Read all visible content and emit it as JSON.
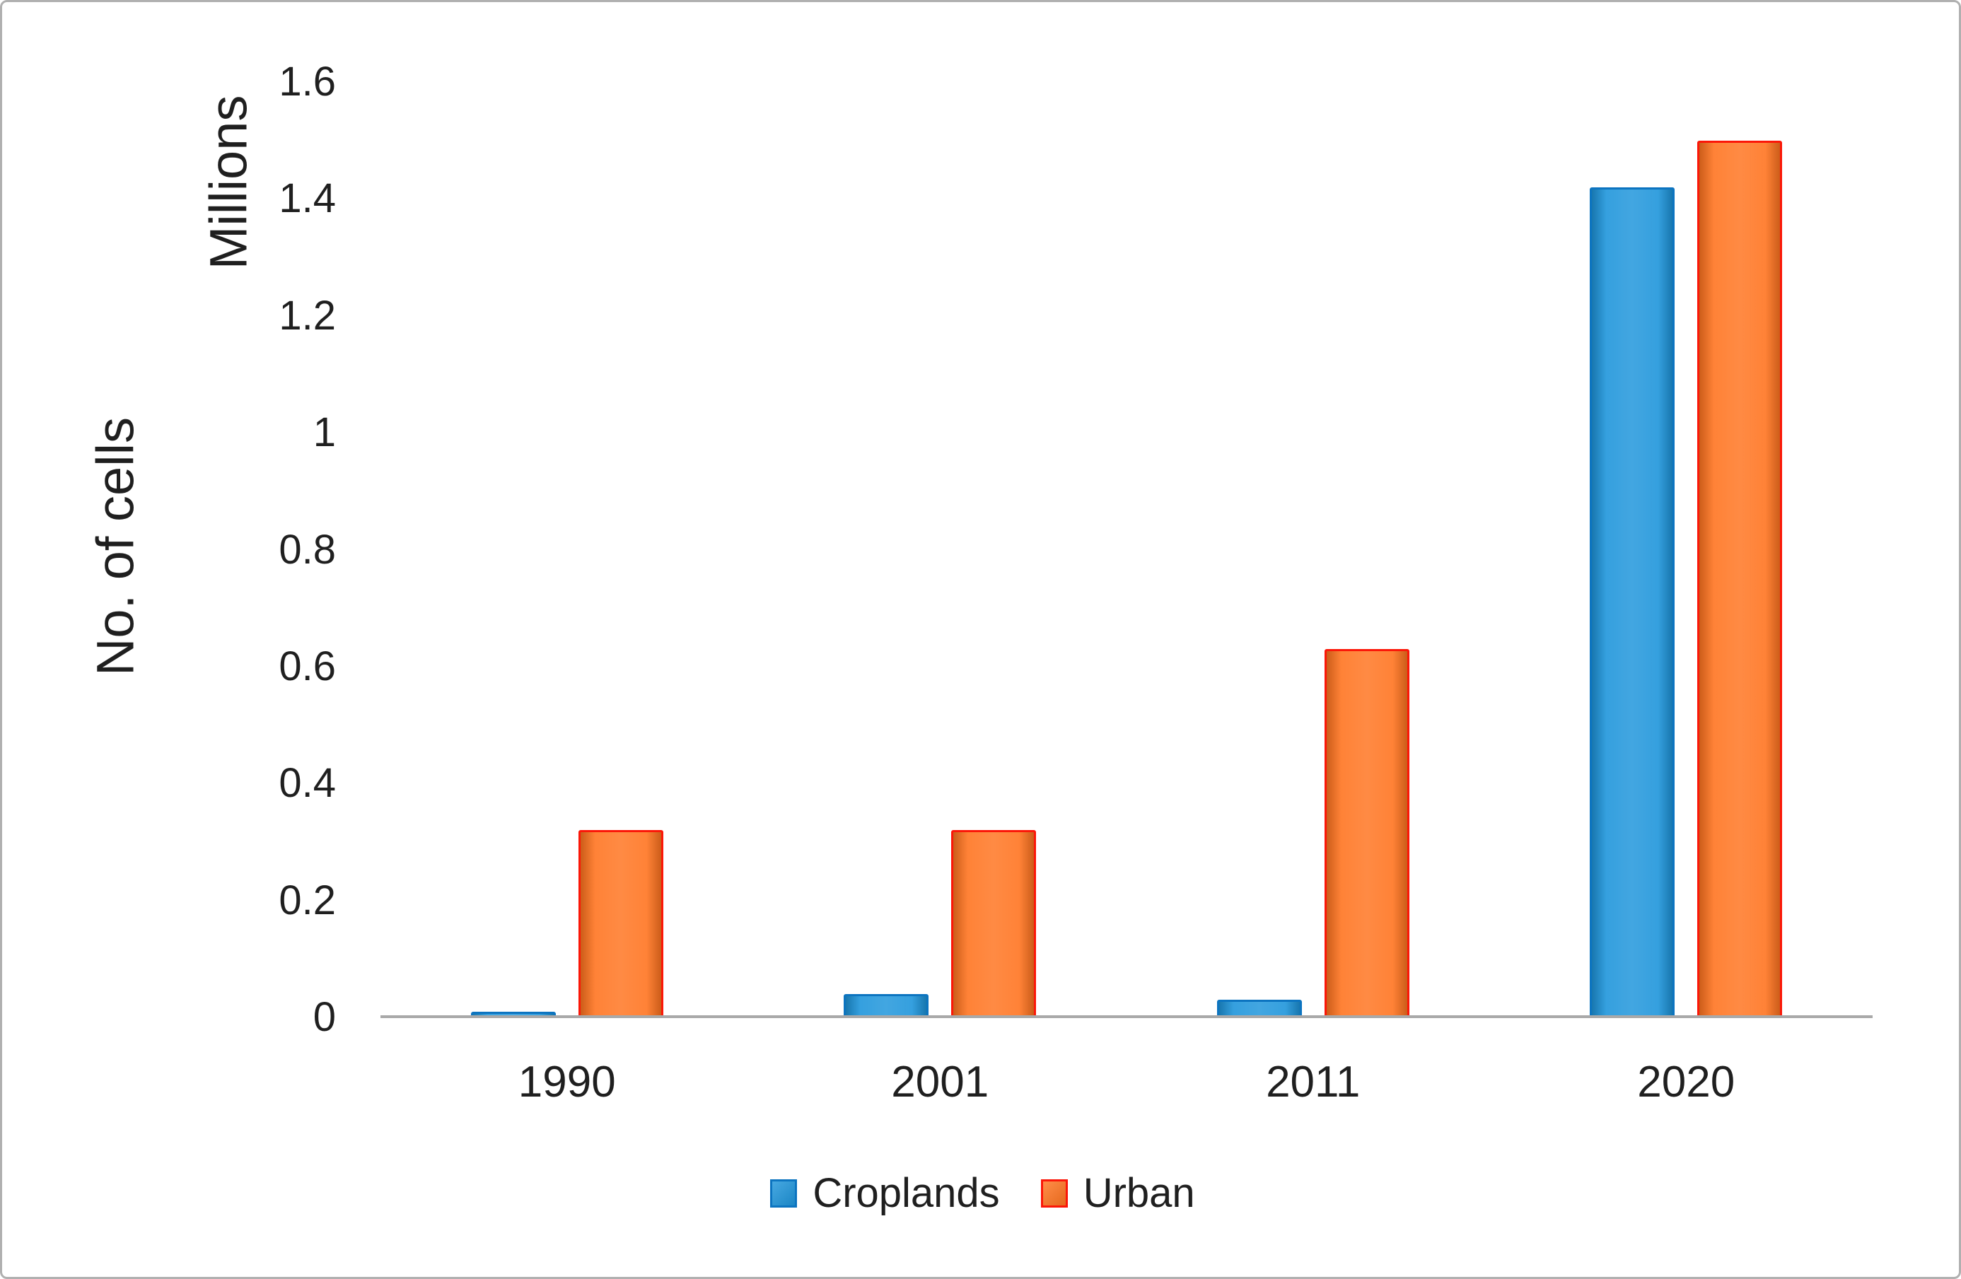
{
  "figure": {
    "background": "#ffffff",
    "frame_border_color": "#b0b0b0",
    "text_color": "#1f1f1f"
  },
  "chart_data": {
    "type": "bar",
    "title": "",
    "categories": [
      "1990",
      "2001",
      "2011",
      "2020"
    ],
    "series": [
      {
        "name": "Croplands",
        "values": [
          0.01,
          0.04,
          0.03,
          1.42
        ],
        "fill_color": "#1E95DB",
        "border_color": "#0C74C0"
      },
      {
        "name": "Urban",
        "values": [
          0.32,
          0.32,
          0.63,
          1.5
        ],
        "fill_color": "#FF7420",
        "border_color": "#FB1708"
      }
    ],
    "xlabel": "",
    "ylabel": "No. of cells",
    "y_units_label": "Millions",
    "ylim": [
      0,
      1.6
    ],
    "yticks": [
      0,
      0.2,
      0.4,
      0.6,
      0.8,
      1,
      1.2,
      1.4,
      1.6
    ],
    "ytick_labels": [
      "0",
      "0.2",
      "0.4",
      "0.6",
      "0.8",
      "1",
      "1.2",
      "1.4",
      "1.6"
    ],
    "grid": false,
    "legend_position": "bottom-center",
    "axis_line_color": "#A9A9A9"
  }
}
